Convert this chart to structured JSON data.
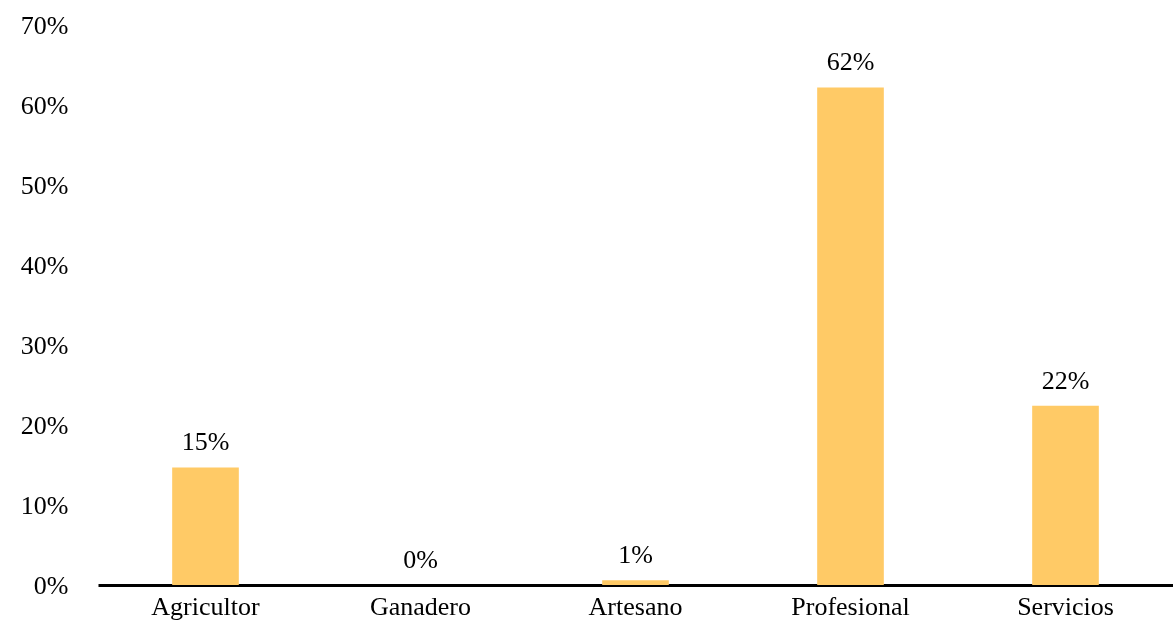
{
  "chart_data": {
    "type": "bar",
    "categories": [
      "Agricultor",
      "Ganadero",
      "Artesano",
      "Profesional",
      "Servicios"
    ],
    "values": [
      14.7,
      0,
      0.6,
      62.2,
      22.4
    ],
    "value_labels": [
      "15%",
      "0%",
      "1%",
      "62%",
      "22%"
    ],
    "color": "#ffca66",
    "ylim": [
      0,
      70
    ],
    "yticks": [
      {
        "value": 0,
        "label": "0%"
      },
      {
        "value": 10,
        "label": "10%"
      },
      {
        "value": 20,
        "label": "20%"
      },
      {
        "value": 30,
        "label": "30%"
      },
      {
        "value": 40,
        "label": "40%"
      },
      {
        "value": 50,
        "label": "50%"
      },
      {
        "value": 60,
        "label": "60%"
      },
      {
        "value": 70,
        "label": "70%"
      }
    ],
    "grid": false
  }
}
